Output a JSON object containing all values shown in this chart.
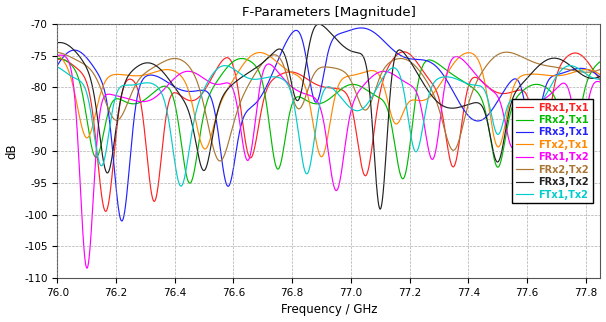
{
  "title": "F-Parameters [Magnitude]",
  "xlabel": "Frequency / GHz",
  "ylabel": "dB",
  "xlim": [
    76.0,
    77.85
  ],
  "ylim": [
    -110,
    -70
  ],
  "yticks": [
    -110,
    -105,
    -100,
    -95,
    -90,
    -85,
    -80,
    -75,
    -70
  ],
  "xticks": [
    76.0,
    76.2,
    76.4,
    76.6,
    76.8,
    77.0,
    77.2,
    77.4,
    77.6,
    77.8
  ],
  "series": [
    {
      "label": "FRx1,Tx1",
      "color": "#FF2222"
    },
    {
      "label": "FRx2,Tx1",
      "color": "#00BB00"
    },
    {
      "label": "FRx3,Tx1",
      "color": "#2222FF"
    },
    {
      "label": "FTx2,Tx1",
      "color": "#FF8800"
    },
    {
      "label": "FRx1,Tx2",
      "color": "#FF00FF"
    },
    {
      "label": "FRx2,Tx2",
      "color": "#AA7733"
    },
    {
      "label": "FRx3,Tx2",
      "color": "#222222"
    },
    {
      "label": "FTx1,Tx2",
      "color": "#00CCCC"
    }
  ],
  "background_color": "#ffffff",
  "grid_color": "#999999",
  "freq_start": 76.0,
  "freq_end": 77.85,
  "num_points": 2000
}
